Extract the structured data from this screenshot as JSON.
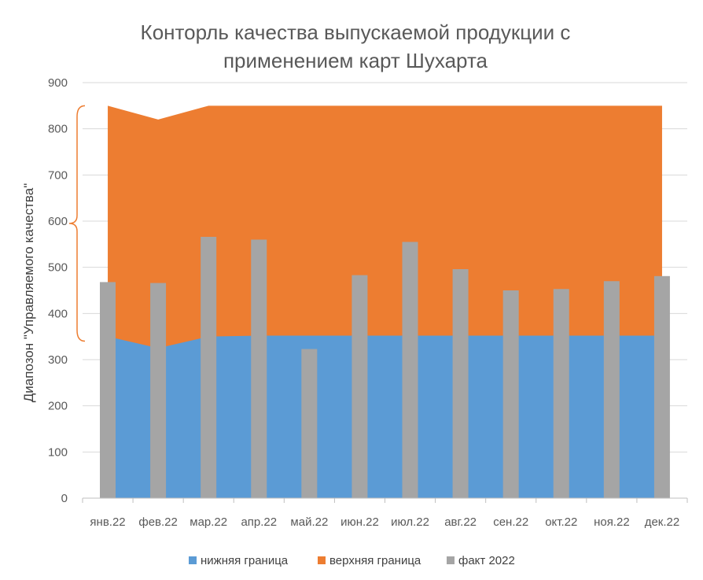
{
  "chart_data": {
    "type": "area",
    "title_line1": "Конторль качества выпускаемой продукции с",
    "title_line2": "применением  карт Шухарта",
    "ylabel": "Диапозон \"Управляемого качества\"",
    "xlabel": "",
    "ylim": [
      0,
      900
    ],
    "yticks": [
      0,
      100,
      200,
      300,
      400,
      500,
      600,
      700,
      800,
      900
    ],
    "grid": true,
    "legend_position": "bottom",
    "categories": [
      "янв.22",
      "фев.22",
      "мар.22",
      "апр.22",
      "май.22",
      "июн.22",
      "июл.22",
      "авг.22",
      "сен.22",
      "окт.22",
      "ноя.22",
      "дек.22"
    ],
    "series": [
      {
        "name": "нижняя граница",
        "kind": "area",
        "color": "#5B9BD5",
        "values": [
          350,
          325,
          350,
          352,
          352,
          352,
          352,
          352,
          352,
          352,
          352,
          352
        ]
      },
      {
        "name": "верхняя граница",
        "kind": "area",
        "color": "#ED7D31",
        "values": [
          850,
          820,
          850,
          850,
          850,
          850,
          850,
          850,
          850,
          850,
          850,
          850
        ]
      },
      {
        "name": "факт 2022",
        "kind": "bar",
        "color": "#A5A5A5",
        "values": [
          468,
          466,
          566,
          560,
          323,
          483,
          555,
          496,
          450,
          453,
          470,
          481
        ]
      }
    ]
  }
}
